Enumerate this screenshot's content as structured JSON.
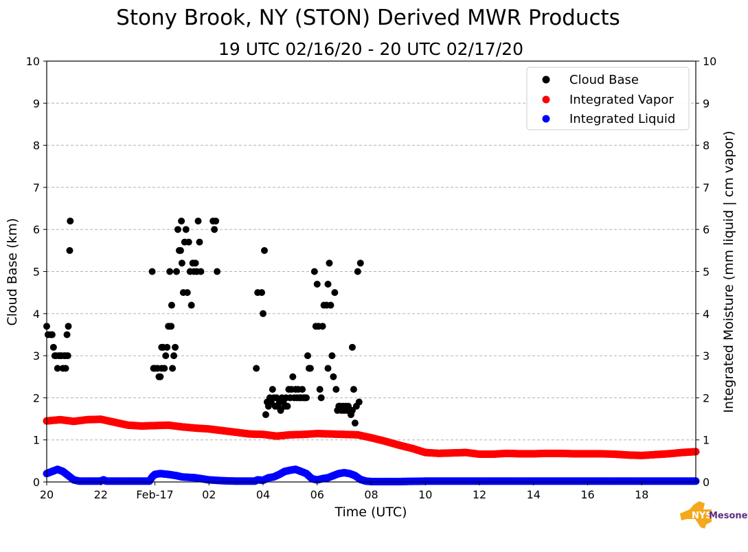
{
  "chart_data": {
    "type": "scatter",
    "title": "Stony Brook, NY (STON) Derived MWR Products",
    "subtitle": "19 UTC 02/16/20 - 20 UTC 02/17/20",
    "xlabel": "Time (UTC)",
    "ylabel_left": "Cloud Base (km)",
    "ylabel_right": "Integrated Moisture (mm liquid | cm vapor)",
    "xlim": [
      0,
      24
    ],
    "ylim": [
      0,
      10
    ],
    "grid": "horizontal dashed",
    "legend_position": "top-right",
    "x_ticks": [
      {
        "x": 0,
        "label": "20"
      },
      {
        "x": 2,
        "label": "22"
      },
      {
        "x": 4,
        "label": "Feb-17"
      },
      {
        "x": 6,
        "label": "02"
      },
      {
        "x": 8,
        "label": "04"
      },
      {
        "x": 10,
        "label": "06"
      },
      {
        "x": 12,
        "label": "08"
      },
      {
        "x": 14,
        "label": "10"
      },
      {
        "x": 16,
        "label": "12"
      },
      {
        "x": 18,
        "label": "14"
      },
      {
        "x": 20,
        "label": "16"
      },
      {
        "x": 22,
        "label": "18"
      }
    ],
    "y_ticks": [
      "0",
      "1",
      "2",
      "3",
      "4",
      "5",
      "6",
      "7",
      "8",
      "9",
      "10"
    ],
    "series": [
      {
        "name": "Cloud Base",
        "color": "#000000",
        "points": [
          [
            0.0,
            3.7
          ],
          [
            0.05,
            3.5
          ],
          [
            0.15,
            3.5
          ],
          [
            0.2,
            3.5
          ],
          [
            0.25,
            3.2
          ],
          [
            0.3,
            3.0
          ],
          [
            0.35,
            3.0
          ],
          [
            0.4,
            2.7
          ],
          [
            0.45,
            3.0
          ],
          [
            0.5,
            3.0
          ],
          [
            0.55,
            3.0
          ],
          [
            0.6,
            2.7
          ],
          [
            0.65,
            3.0
          ],
          [
            0.7,
            2.7
          ],
          [
            0.7,
            3.0
          ],
          [
            0.75,
            3.5
          ],
          [
            0.78,
            3.0
          ],
          [
            0.8,
            3.7
          ],
          [
            0.85,
            5.5
          ],
          [
            0.87,
            6.2
          ],
          [
            3.9,
            5.0
          ],
          [
            3.95,
            2.7
          ],
          [
            4.0,
            2.7
          ],
          [
            4.1,
            2.7
          ],
          [
            4.15,
            2.5
          ],
          [
            4.2,
            2.5
          ],
          [
            4.25,
            2.7
          ],
          [
            4.25,
            3.2
          ],
          [
            4.3,
            3.2
          ],
          [
            4.35,
            2.7
          ],
          [
            4.4,
            3.0
          ],
          [
            4.45,
            3.2
          ],
          [
            4.5,
            3.7
          ],
          [
            4.55,
            5.0
          ],
          [
            4.6,
            3.7
          ],
          [
            4.62,
            4.2
          ],
          [
            4.65,
            2.7
          ],
          [
            4.7,
            3.0
          ],
          [
            4.75,
            3.2
          ],
          [
            4.8,
            5.0
          ],
          [
            4.85,
            6.0
          ],
          [
            4.9,
            5.5
          ],
          [
            4.95,
            5.5
          ],
          [
            4.98,
            6.2
          ],
          [
            5.0,
            5.2
          ],
          [
            5.05,
            4.5
          ],
          [
            5.1,
            5.7
          ],
          [
            5.15,
            6.0
          ],
          [
            5.2,
            4.5
          ],
          [
            5.25,
            5.7
          ],
          [
            5.3,
            5.0
          ],
          [
            5.35,
            4.2
          ],
          [
            5.4,
            5.2
          ],
          [
            5.45,
            5.0
          ],
          [
            5.5,
            5.2
          ],
          [
            5.55,
            5.0
          ],
          [
            5.6,
            6.2
          ],
          [
            5.65,
            5.7
          ],
          [
            5.7,
            5.0
          ],
          [
            6.15,
            6.2
          ],
          [
            6.2,
            6.0
          ],
          [
            6.25,
            6.2
          ],
          [
            6.3,
            5.0
          ],
          [
            7.75,
            2.7
          ],
          [
            7.8,
            4.5
          ],
          [
            7.95,
            4.5
          ],
          [
            8.0,
            4.0
          ],
          [
            8.05,
            5.5
          ],
          [
            8.1,
            1.6
          ],
          [
            8.15,
            1.9
          ],
          [
            8.2,
            1.8
          ],
          [
            8.25,
            2.0
          ],
          [
            8.3,
            1.9
          ],
          [
            8.35,
            2.2
          ],
          [
            8.4,
            2.0
          ],
          [
            8.45,
            1.8
          ],
          [
            8.5,
            2.0
          ],
          [
            8.55,
            1.8
          ],
          [
            8.6,
            1.9
          ],
          [
            8.65,
            1.7
          ],
          [
            8.7,
            2.0
          ],
          [
            8.75,
            1.9
          ],
          [
            8.8,
            1.8
          ],
          [
            8.85,
            2.0
          ],
          [
            8.9,
            1.8
          ],
          [
            8.95,
            2.2
          ],
          [
            9.0,
            2.0
          ],
          [
            9.05,
            2.2
          ],
          [
            9.1,
            2.5
          ],
          [
            9.15,
            2.0
          ],
          [
            9.2,
            2.2
          ],
          [
            9.25,
            2.0
          ],
          [
            9.3,
            2.2
          ],
          [
            9.35,
            2.0
          ],
          [
            9.4,
            2.0
          ],
          [
            9.45,
            2.2
          ],
          [
            9.5,
            2.0
          ],
          [
            9.55,
            2.0
          ],
          [
            9.6,
            2.0
          ],
          [
            9.65,
            3.0
          ],
          [
            9.7,
            2.7
          ],
          [
            9.75,
            2.7
          ],
          [
            9.9,
            5.0
          ],
          [
            9.95,
            3.7
          ],
          [
            10.0,
            4.7
          ],
          [
            10.05,
            3.7
          ],
          [
            10.1,
            2.2
          ],
          [
            10.15,
            2.0
          ],
          [
            10.2,
            3.7
          ],
          [
            10.25,
            4.2
          ],
          [
            10.35,
            4.2
          ],
          [
            10.4,
            2.7
          ],
          [
            10.4,
            4.7
          ],
          [
            10.45,
            5.2
          ],
          [
            10.5,
            4.2
          ],
          [
            10.55,
            3.0
          ],
          [
            10.6,
            2.5
          ],
          [
            10.65,
            4.5
          ],
          [
            10.7,
            2.2
          ],
          [
            10.75,
            1.7
          ],
          [
            10.8,
            1.8
          ],
          [
            10.85,
            1.8
          ],
          [
            10.9,
            1.7
          ],
          [
            10.95,
            1.8
          ],
          [
            11.0,
            1.7
          ],
          [
            11.05,
            1.8
          ],
          [
            11.1,
            1.7
          ],
          [
            11.15,
            1.8
          ],
          [
            11.2,
            1.7
          ],
          [
            11.25,
            1.6
          ],
          [
            11.3,
            1.7
          ],
          [
            11.3,
            3.2
          ],
          [
            11.35,
            2.2
          ],
          [
            11.4,
            1.4
          ],
          [
            11.45,
            1.8
          ],
          [
            11.5,
            5.0
          ],
          [
            11.55,
            1.9
          ],
          [
            11.6,
            5.2
          ]
        ]
      },
      {
        "name": "Integrated Vapor",
        "color": "#ff0000",
        "curve": [
          [
            0,
            1.45
          ],
          [
            0.5,
            1.48
          ],
          [
            1,
            1.44
          ],
          [
            1.5,
            1.48
          ],
          [
            2,
            1.49
          ],
          [
            2.5,
            1.42
          ],
          [
            3,
            1.35
          ],
          [
            3.5,
            1.33
          ],
          [
            4,
            1.34
          ],
          [
            4.5,
            1.35
          ],
          [
            5,
            1.31
          ],
          [
            5.5,
            1.28
          ],
          [
            6,
            1.26
          ],
          [
            6.5,
            1.22
          ],
          [
            7,
            1.18
          ],
          [
            7.5,
            1.14
          ],
          [
            8,
            1.13
          ],
          [
            8.5,
            1.09
          ],
          [
            9,
            1.12
          ],
          [
            9.5,
            1.13
          ],
          [
            10,
            1.15
          ],
          [
            10.5,
            1.14
          ],
          [
            11,
            1.13
          ],
          [
            11.5,
            1.12
          ],
          [
            12,
            1.05
          ],
          [
            12.5,
            0.97
          ],
          [
            13,
            0.88
          ],
          [
            13.5,
            0.8
          ],
          [
            14,
            0.7
          ],
          [
            14.5,
            0.68
          ],
          [
            15,
            0.69
          ],
          [
            15.5,
            0.7
          ],
          [
            16,
            0.66
          ],
          [
            16.5,
            0.66
          ],
          [
            17,
            0.68
          ],
          [
            17.5,
            0.67
          ],
          [
            18,
            0.67
          ],
          [
            18.5,
            0.68
          ],
          [
            19,
            0.68
          ],
          [
            19.5,
            0.67
          ],
          [
            20,
            0.67
          ],
          [
            20.5,
            0.67
          ],
          [
            21,
            0.66
          ],
          [
            21.5,
            0.64
          ],
          [
            22,
            0.63
          ],
          [
            22.5,
            0.65
          ],
          [
            23,
            0.67
          ],
          [
            23.5,
            0.7
          ],
          [
            24,
            0.72
          ]
        ]
      },
      {
        "name": "Integrated Liquid",
        "color": "#0000ff",
        "curve": [
          [
            0,
            0.2
          ],
          [
            0.2,
            0.25
          ],
          [
            0.4,
            0.3
          ],
          [
            0.6,
            0.25
          ],
          [
            0.8,
            0.15
          ],
          [
            1,
            0.05
          ],
          [
            1.2,
            0.02
          ],
          [
            2,
            0.02
          ],
          [
            2.1,
            0.05
          ],
          [
            2.2,
            0.02
          ],
          [
            3,
            0.02
          ],
          [
            3.8,
            0.02
          ],
          [
            3.9,
            0.12
          ],
          [
            4,
            0.18
          ],
          [
            4.2,
            0.2
          ],
          [
            4.5,
            0.18
          ],
          [
            4.8,
            0.15
          ],
          [
            5,
            0.12
          ],
          [
            5.5,
            0.1
          ],
          [
            6,
            0.05
          ],
          [
            6.5,
            0.03
          ],
          [
            7,
            0.02
          ],
          [
            7.7,
            0.02
          ],
          [
            7.8,
            0.05
          ],
          [
            8,
            0.04
          ],
          [
            8.2,
            0.1
          ],
          [
            8.4,
            0.12
          ],
          [
            8.6,
            0.18
          ],
          [
            8.8,
            0.25
          ],
          [
            9,
            0.28
          ],
          [
            9.2,
            0.3
          ],
          [
            9.4,
            0.25
          ],
          [
            9.6,
            0.2
          ],
          [
            9.8,
            0.08
          ],
          [
            10,
            0.05
          ],
          [
            10.2,
            0.08
          ],
          [
            10.4,
            0.1
          ],
          [
            10.6,
            0.15
          ],
          [
            10.8,
            0.2
          ],
          [
            11,
            0.22
          ],
          [
            11.2,
            0.2
          ],
          [
            11.4,
            0.15
          ],
          [
            11.6,
            0.06
          ],
          [
            11.8,
            0.02
          ],
          [
            12,
            0.01
          ],
          [
            13,
            0.01
          ],
          [
            14,
            0.02
          ],
          [
            15,
            0.02
          ],
          [
            16,
            0.02
          ],
          [
            17,
            0.02
          ],
          [
            18,
            0.02
          ],
          [
            19,
            0.02
          ],
          [
            20,
            0.02
          ],
          [
            21,
            0.02
          ],
          [
            22,
            0.02
          ],
          [
            23,
            0.02
          ],
          [
            24,
            0.02
          ]
        ]
      }
    ]
  },
  "logo": {
    "text_main": "NYS",
    "text_secondary": "Mesonet",
    "color_shape": "#f4a81d",
    "color_text": "#5b2c83"
  }
}
